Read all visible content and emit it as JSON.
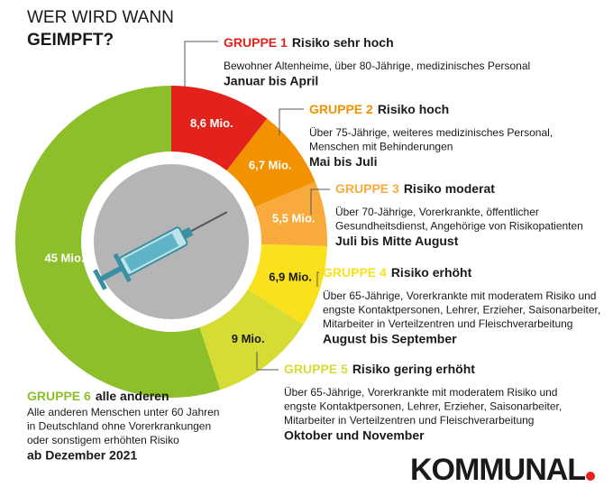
{
  "title": [
    "WER WIRD WANN",
    "GEIMPFT?"
  ],
  "chart_data": {
    "type": "donut",
    "categories": [
      "GRUPPE 1",
      "GRUPPE 2",
      "GRUPPE 3",
      "GRUPPE 4",
      "GRUPPE 5",
      "GRUPPE 6"
    ],
    "values": [
      8.6,
      6.7,
      5.5,
      6.9,
      9,
      45
    ],
    "value_labels": [
      "8,6 Mio.",
      "6,7 Mio.",
      "5,5 Mio.",
      "6,9 Mio.",
      "9 Mio.",
      "45 Mio."
    ],
    "colors": [
      "#e3231b",
      "#f39200",
      "#f8ab3c",
      "#f9e11e",
      "#d5dc34",
      "#8dbf2a"
    ],
    "value_label_colors": [
      "#ffffff",
      "#ffffff",
      "#ffffff",
      "#1a1a1a",
      "#1a1a1a",
      "#ffffff"
    ]
  },
  "groups": [
    {
      "risk": "Risiko sehr hoch",
      "description": [
        "Bewohner Altenheime, über 80-Jährige, medizinisches Personal"
      ],
      "period": "Januar bis April"
    },
    {
      "risk": "Risiko hoch",
      "description": [
        "Über 75-Jährige, weiteres medizinisches Personal,",
        "Menschen mit Behinderungen"
      ],
      "period": "Mai bis Juli"
    },
    {
      "risk": "Risiko moderat",
      "description": [
        "Über 70-Jährige, Vorerkrankte, öffentlicher",
        "Gesundheitsdienst, Angehörige von Risikopatienten"
      ],
      "period": "Juli bis Mitte August"
    },
    {
      "risk": "Risiko erhöht",
      "description": [
        "Über 65-Jährige, Vorerkrankte mit moderatem Risiko und",
        "engste Kontaktpersonen, Lehrer, Erzieher, Saisonarbeiter,",
        "Mitarbeiter in Verteilzentren und Fleischverarbeitung"
      ],
      "period": "August bis September"
    },
    {
      "risk": "Risiko gering erhöht",
      "description": [
        "Über 65-Jährige, Vorerkrankte mit moderatem Risiko und",
        "engste Kontaktpersonen, Lehrer, Erzieher, Saisonarbeiter,",
        "Mitarbeiter in Verteilzentren und Fleischverarbeitung"
      ],
      "period": "Oktober und November"
    },
    {
      "risk": "alle anderen",
      "description": [
        "Alle anderen Menschen unter 60 Jahren",
        "in Deutschland ohne Vorerkrankungen",
        "oder sonstigem erhöhten Risiko"
      ],
      "period": "ab Dezember 2021"
    }
  ],
  "logo": "KOMMUNAL"
}
